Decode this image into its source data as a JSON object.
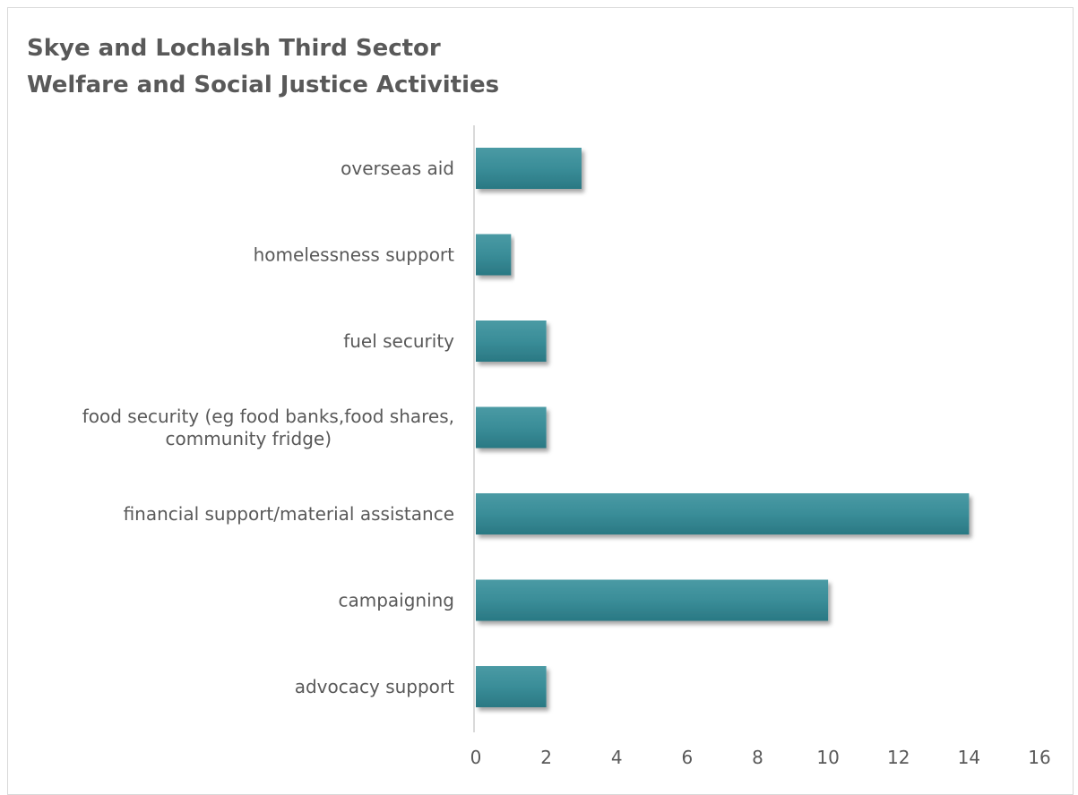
{
  "chart_data": {
    "type": "bar",
    "orientation": "horizontal",
    "title": [
      "Skye and Lochalsh Third Sector",
      "Welfare and Social Justice Activities"
    ],
    "categories": [
      [
        "overseas aid"
      ],
      [
        "homelessness support"
      ],
      [
        "fuel security"
      ],
      [
        "food security (eg food banks,food shares,",
        "community fridge)"
      ],
      [
        "financial support/material assistance"
      ],
      [
        "campaigning"
      ],
      [
        "advocacy support"
      ]
    ],
    "values": [
      3,
      1,
      2,
      2,
      14,
      10,
      2
    ],
    "xlim": [
      0,
      16
    ],
    "xticks": [
      "0",
      "2",
      "4",
      "6",
      "8",
      "10",
      "12",
      "14",
      "16"
    ],
    "bar_color": "#2f8591",
    "grid": false,
    "legend": "none"
  }
}
